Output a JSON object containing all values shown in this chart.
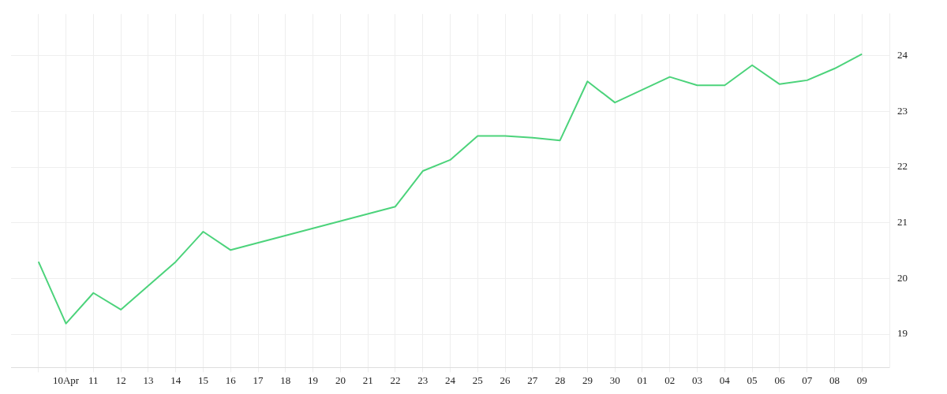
{
  "chart_data": {
    "type": "line",
    "x": [
      "--04-09",
      "--04-10",
      "--04-11",
      "--04-12",
      "--04-14",
      "--04-15",
      "--04-16",
      "--04-22",
      "--04-23",
      "--04-24",
      "--04-25",
      "--04-26",
      "--04-27",
      "--04-28",
      "--04-29",
      "--04-30",
      "--05-02",
      "--05-03",
      "--05-04",
      "--05-05",
      "--05-06",
      "--05-07",
      "--05-08",
      "--05-09"
    ],
    "series": [
      {
        "color": "#4cd37b",
        "values": [
          20.3,
          19.19,
          19.74,
          19.44,
          20.3,
          20.84,
          20.51,
          21.29,
          21.93,
          22.13,
          22.56,
          22.56,
          22.53,
          22.48,
          23.54,
          23.16,
          23.62,
          23.47,
          23.47,
          23.83,
          23.49,
          23.56,
          23.77,
          24.03
        ]
      }
    ],
    "xlim": [
      "--04-08",
      "--05-10"
    ],
    "xticks": [
      {
        "value": "--04-09",
        "label": null
      },
      {
        "value": "--04-10",
        "label": "10Apr"
      },
      {
        "value": "--04-11",
        "label": "11"
      },
      {
        "value": "--04-12",
        "label": "12"
      },
      {
        "value": "--04-13",
        "label": "13"
      },
      {
        "value": "--04-14",
        "label": "14"
      },
      {
        "value": "--04-15",
        "label": "15"
      },
      {
        "value": "--04-16",
        "label": "16"
      },
      {
        "value": "--04-17",
        "label": "17"
      },
      {
        "value": "--04-18",
        "label": "18"
      },
      {
        "value": "--04-19",
        "label": "19"
      },
      {
        "value": "--04-20",
        "label": "20"
      },
      {
        "value": "--04-21",
        "label": "21"
      },
      {
        "value": "--04-22",
        "label": "22"
      },
      {
        "value": "--04-23",
        "label": "23"
      },
      {
        "value": "--04-24",
        "label": "24"
      },
      {
        "value": "--04-25",
        "label": "25"
      },
      {
        "value": "--04-26",
        "label": "26"
      },
      {
        "value": "--04-27",
        "label": "27"
      },
      {
        "value": "--04-28",
        "label": "28"
      },
      {
        "value": "--04-29",
        "label": "29"
      },
      {
        "value": "--04-30",
        "label": "30"
      },
      {
        "value": "--05-01",
        "label": "01"
      },
      {
        "value": "--05-02",
        "label": "02"
      },
      {
        "value": "--05-03",
        "label": "03"
      },
      {
        "value": "--05-04",
        "label": "04"
      },
      {
        "value": "--05-05",
        "label": "05"
      },
      {
        "value": "--05-06",
        "label": "06"
      },
      {
        "value": "--05-07",
        "label": "07"
      },
      {
        "value": "--05-08",
        "label": "08"
      },
      {
        "value": "--05-09",
        "label": "09"
      }
    ],
    "ylim": [
      18.4,
      24.75
    ],
    "yticks": [
      19,
      20,
      21,
      22,
      23,
      24
    ],
    "grid": true,
    "legend": false,
    "marker": "none",
    "line_style": "solid"
  }
}
